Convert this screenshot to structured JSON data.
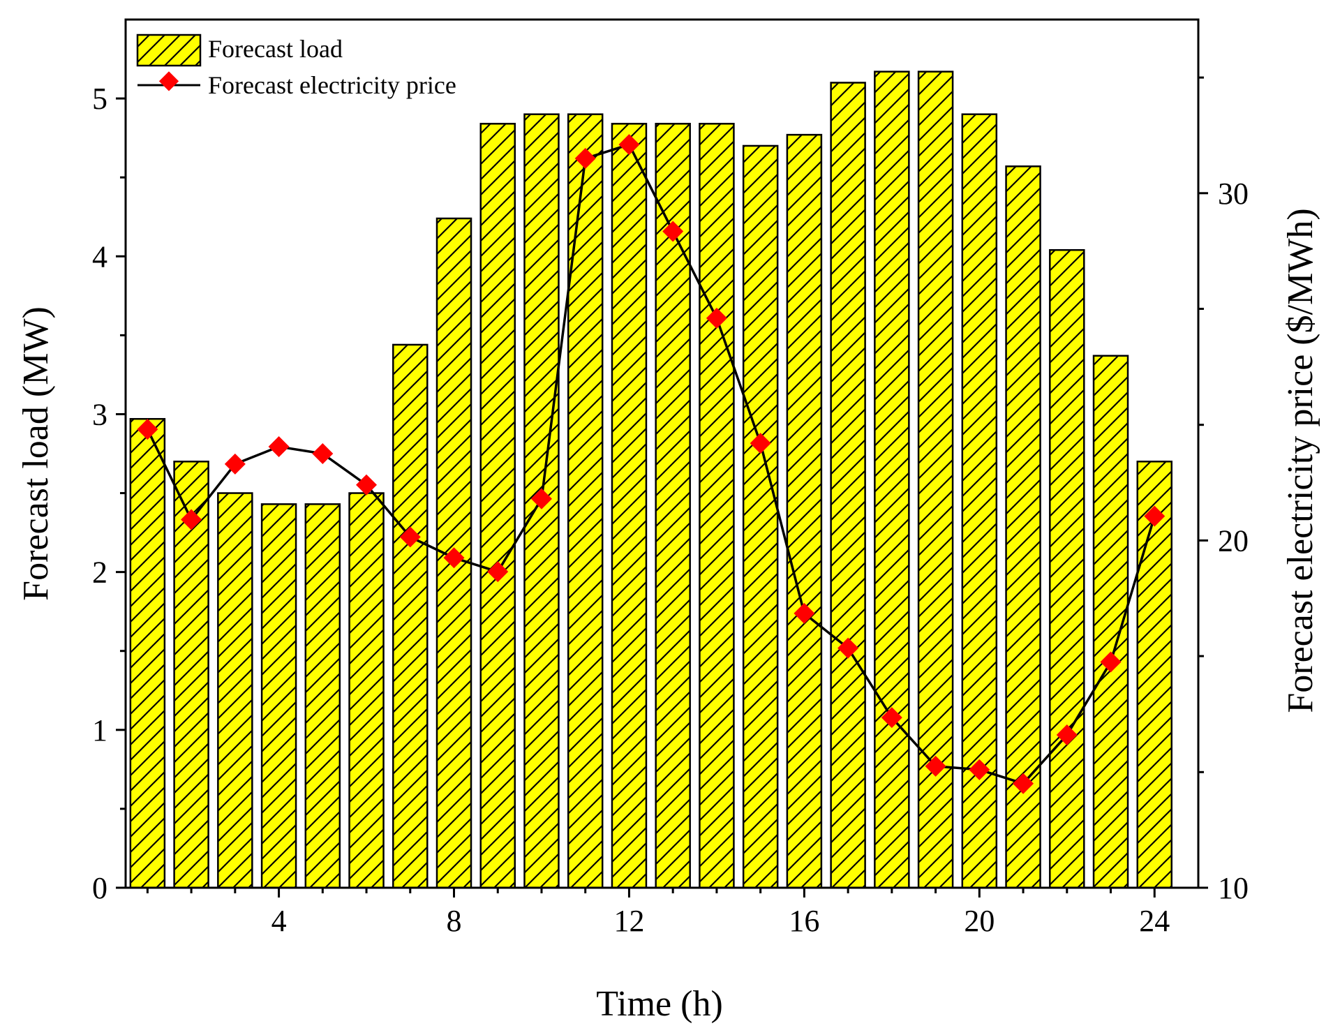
{
  "colors": {
    "bar_fill": "#ffff00",
    "bar_stroke": "#000000",
    "hatch": "#000000",
    "line": "#000000",
    "marker": "#ff0000",
    "axis": "#000000"
  },
  "chart_data": {
    "type": "bar+line",
    "x": [
      1,
      2,
      3,
      4,
      5,
      6,
      7,
      8,
      9,
      10,
      11,
      12,
      13,
      14,
      15,
      16,
      17,
      18,
      19,
      20,
      21,
      22,
      23,
      24
    ],
    "xlabel": "Time (h)",
    "xlim": [
      0.5,
      25
    ],
    "x_ticks": [
      4,
      8,
      12,
      16,
      20,
      24
    ],
    "x_tick_labels": [
      "4",
      "8",
      "12",
      "16",
      "20",
      "24"
    ],
    "x_minor_ticks": [
      1,
      2,
      3,
      5,
      6,
      7,
      9,
      10,
      11,
      13,
      14,
      15,
      17,
      18,
      19,
      21,
      22,
      23
    ],
    "series": [
      {
        "name": "Forecast load",
        "kind": "bar",
        "axis": "left",
        "values": [
          2.97,
          2.7,
          2.5,
          2.43,
          2.43,
          2.5,
          3.44,
          4.24,
          4.84,
          4.9,
          4.9,
          4.84,
          4.84,
          4.84,
          4.7,
          4.77,
          5.1,
          5.17,
          5.17,
          4.9,
          4.57,
          4.04,
          3.37,
          2.7
        ]
      },
      {
        "name": "Forecast electricity price",
        "kind": "line",
        "axis": "right",
        "values": [
          23.2,
          20.6,
          22.2,
          22.7,
          22.5,
          21.6,
          20.1,
          19.5,
          19.1,
          21.2,
          31.0,
          31.4,
          28.9,
          26.4,
          22.8,
          17.9,
          16.9,
          14.9,
          13.5,
          13.4,
          13.0,
          14.4,
          16.5,
          20.7
        ]
      }
    ],
    "left_axis": {
      "label": "Forecast load (MW)",
      "ylim": [
        0,
        5.5
      ],
      "ticks": [
        0,
        1,
        2,
        3,
        4,
        5
      ],
      "tick_labels": [
        "0",
        "1",
        "2",
        "3",
        "4",
        "5"
      ],
      "minor_ticks": [
        0.5,
        1.5,
        2.5,
        3.5,
        4.5
      ]
    },
    "right_axis": {
      "label": "Forecast electricity price ($/MWh)",
      "ylim": [
        10,
        35
      ],
      "ticks": [
        10,
        20,
        30
      ],
      "tick_labels": [
        "10",
        "20",
        "30"
      ],
      "minor_ticks": [
        13.33,
        16.67,
        23.33,
        26.67,
        33.33
      ]
    },
    "legend": {
      "position": "top-left",
      "entries": [
        "Forecast load",
        "Forecast electricity price"
      ]
    },
    "grid": false
  }
}
